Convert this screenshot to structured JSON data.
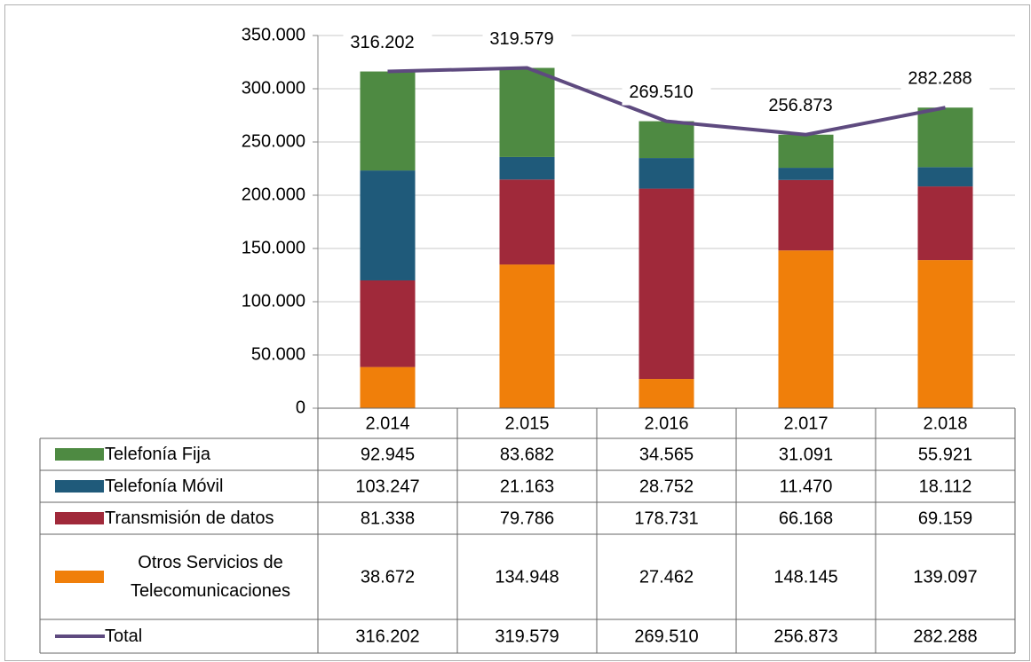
{
  "chart_data": {
    "type": "bar",
    "stacked": true,
    "categories": [
      "2.014",
      "2.015",
      "2.016",
      "2.017",
      "2.018"
    ],
    "ylim": [
      0,
      350000
    ],
    "yticks": [
      {
        "value": 0,
        "label": "0"
      },
      {
        "value": 50000,
        "label": "50.000"
      },
      {
        "value": 100000,
        "label": "100.000"
      },
      {
        "value": 150000,
        "label": "150.000"
      },
      {
        "value": 200000,
        "label": "200.000"
      },
      {
        "value": 250000,
        "label": "250.000"
      },
      {
        "value": 300000,
        "label": "300.000"
      },
      {
        "value": 350000,
        "label": "350.000"
      }
    ],
    "grid": true,
    "series": [
      {
        "name": "Telefonía Fija",
        "color": "#4e8a42",
        "values": [
          92945,
          83682,
          34565,
          31091,
          55921
        ],
        "value_labels": [
          "92.945",
          "83.682",
          "34.565",
          "31.091",
          "55.921"
        ]
      },
      {
        "name": "Telefonía Móvil",
        "color": "#1f5a7a",
        "values": [
          103247,
          21163,
          28752,
          11470,
          18112
        ],
        "value_labels": [
          "103.247",
          "21.163",
          "28.752",
          "11.470",
          "18.112"
        ]
      },
      {
        "name": "Transmisión de datos",
        "color": "#a0293a",
        "values": [
          81338,
          79786,
          178731,
          66168,
          69159
        ],
        "value_labels": [
          "81.338",
          "79.786",
          "178.731",
          "66.168",
          "69.159"
        ]
      },
      {
        "name": "Otros Servicios de Telecomunicaciones",
        "color": "#f07f0a",
        "values": [
          38672,
          134948,
          27462,
          148145,
          139097
        ],
        "value_labels": [
          "38.672",
          "134.948",
          "27.462",
          "148.145",
          "139.097"
        ]
      },
      {
        "name": "Total",
        "type": "line",
        "color": "#5e4a7f",
        "values": [
          316202,
          319579,
          269510,
          256873,
          282288
        ],
        "value_labels": [
          "316.202",
          "319.579",
          "269.510",
          "256.873",
          "282.288"
        ]
      }
    ]
  }
}
